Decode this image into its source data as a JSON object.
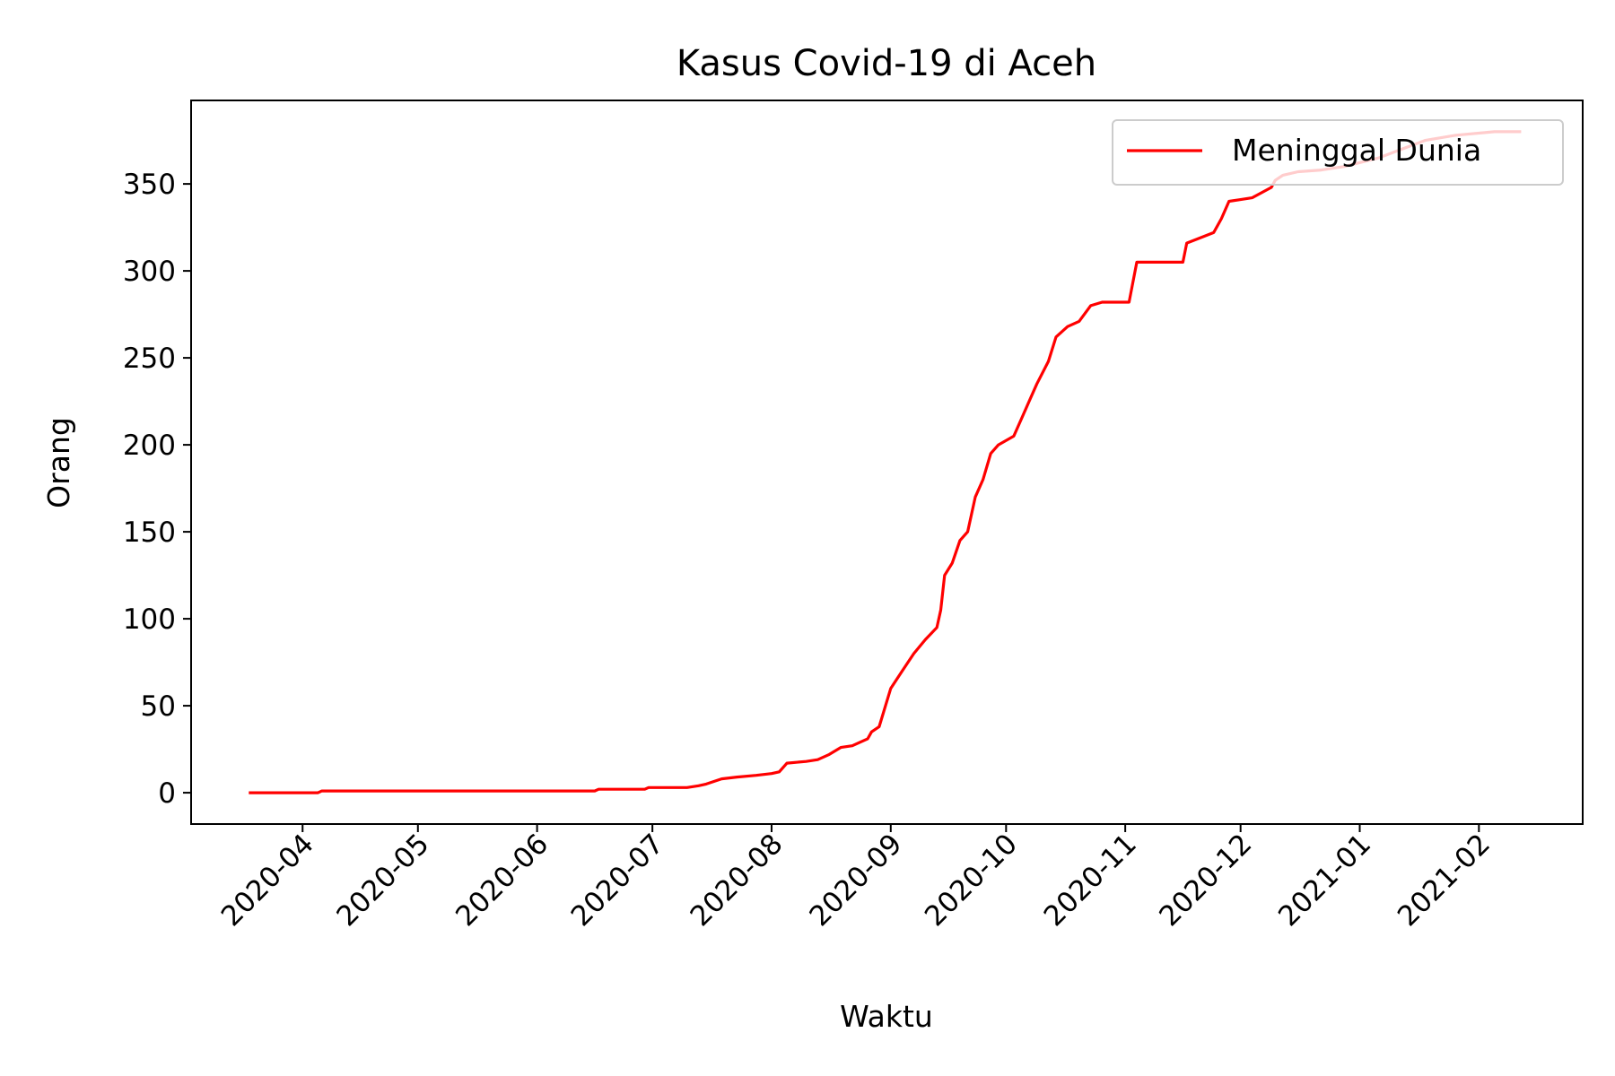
{
  "chart_data": {
    "type": "line",
    "title": "Kasus Covid-19 di Aceh",
    "xlabel": "Waktu",
    "ylabel": "Orang",
    "ylim": [
      -18,
      398
    ],
    "xlim": [
      "2020-03-03",
      "2021-02-28"
    ],
    "yticks": [
      0,
      50,
      100,
      150,
      200,
      250,
      300,
      350
    ],
    "xticks": [
      "2020-04",
      "2020-05",
      "2020-06",
      "2020-07",
      "2020-08",
      "2020-09",
      "2020-10",
      "2020-11",
      "2020-12",
      "2021-01",
      "2021-02"
    ],
    "legend_position": "top-right",
    "grid": false,
    "line_color": "#ff0000",
    "series": [
      {
        "name": "Meninggal Dunia",
        "x": [
          "2020-03-18",
          "2020-04-05",
          "2020-04-06",
          "2020-06-16",
          "2020-06-17",
          "2020-06-29",
          "2020-06-30",
          "2020-07-10",
          "2020-07-13",
          "2020-07-15",
          "2020-07-19",
          "2020-07-23",
          "2020-07-28",
          "2020-08-01",
          "2020-08-03",
          "2020-08-05",
          "2020-08-10",
          "2020-08-13",
          "2020-08-16",
          "2020-08-19",
          "2020-08-22",
          "2020-08-24",
          "2020-08-26",
          "2020-08-27",
          "2020-08-29",
          "2020-09-01",
          "2020-09-04",
          "2020-09-07",
          "2020-09-10",
          "2020-09-13",
          "2020-09-14",
          "2020-09-15",
          "2020-09-17",
          "2020-09-19",
          "2020-09-21",
          "2020-09-23",
          "2020-09-25",
          "2020-09-27",
          "2020-09-29",
          "2020-10-03",
          "2020-10-05",
          "2020-10-07",
          "2020-10-09",
          "2020-10-12",
          "2020-10-14",
          "2020-10-17",
          "2020-10-20",
          "2020-10-23",
          "2020-10-26",
          "2020-10-30",
          "2020-11-02",
          "2020-11-04",
          "2020-11-16",
          "2020-11-17",
          "2020-11-24",
          "2020-11-26",
          "2020-11-28",
          "2020-12-01",
          "2020-12-04",
          "2020-12-09",
          "2020-12-10",
          "2020-12-12",
          "2020-12-16",
          "2020-12-22",
          "2020-12-28",
          "2021-01-06",
          "2021-01-12",
          "2021-01-18",
          "2021-01-26",
          "2021-02-05",
          "2021-02-12"
        ],
        "values": [
          0,
          0,
          1,
          1,
          2,
          2,
          3,
          3,
          4,
          5,
          8,
          9,
          10,
          11,
          12,
          17,
          18,
          19,
          22,
          26,
          27,
          29,
          31,
          35,
          38,
          60,
          70,
          80,
          88,
          95,
          105,
          125,
          132,
          145,
          150,
          170,
          180,
          195,
          200,
          205,
          215,
          225,
          235,
          248,
          262,
          268,
          271,
          280,
          282,
          282,
          282,
          305,
          305,
          316,
          322,
          330,
          340,
          341,
          342,
          348,
          352,
          355,
          357,
          358,
          360,
          365,
          370,
          375,
          378,
          380,
          380
        ]
      }
    ]
  }
}
